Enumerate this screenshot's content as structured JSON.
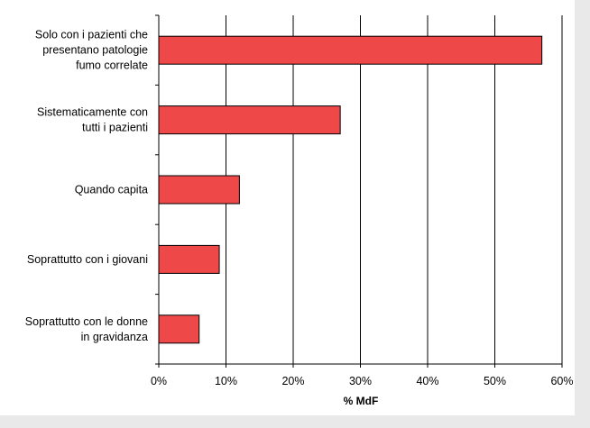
{
  "chart_data": {
    "type": "bar",
    "orientation": "horizontal",
    "categories": [
      [
        "Solo con i pazienti che",
        "presentano patologie",
        "fumo correlate"
      ],
      [
        "Sistematicamente con",
        "tutti i pazienti"
      ],
      [
        "Quando capita"
      ],
      [
        "Soprattutto con i giovani"
      ],
      [
        "Soprattutto con le donne",
        "in gravidanza"
      ]
    ],
    "values": [
      57,
      27,
      12,
      9,
      6
    ],
    "xlabel": "% MdF",
    "xlim": [
      0,
      60
    ],
    "x_ticks": [
      0,
      10,
      20,
      30,
      40,
      50,
      60
    ],
    "x_tick_labels": [
      "0%",
      "10%",
      "20%",
      "30%",
      "40%",
      "50%",
      "60%"
    ],
    "grid": "vertical",
    "legend": "none",
    "colors": {
      "bar_fill": "#ef4848",
      "bar_stroke": "#000000",
      "grid": "#000000",
      "background": "#ffffff",
      "frame": "#e9e9e9"
    }
  }
}
